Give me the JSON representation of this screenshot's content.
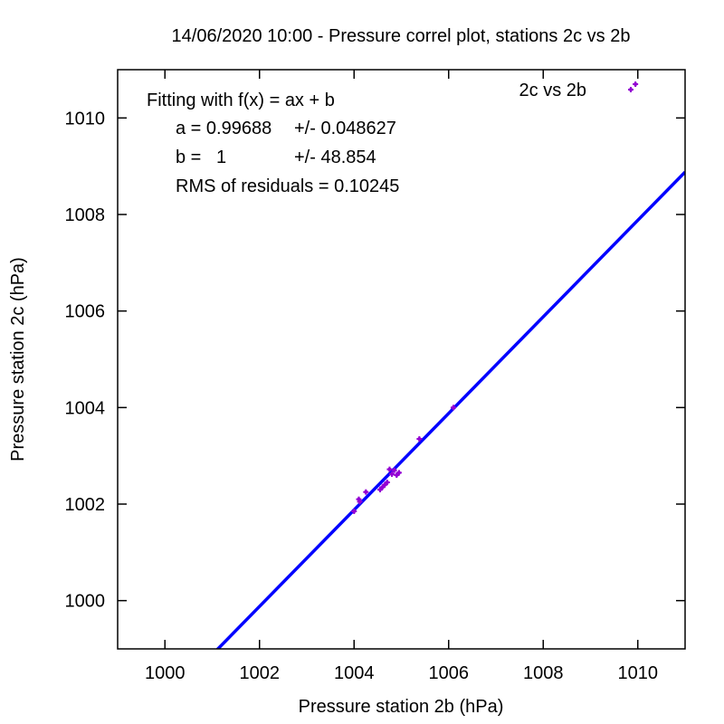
{
  "chart_data": {
    "type": "scatter",
    "title": "14/06/2020 10:00 - Pressure correl plot, stations 2c vs 2b",
    "xlabel": "Pressure station 2b (hPa)",
    "ylabel": "Pressure station 2c (hPa)",
    "xlim": [
      999,
      1011
    ],
    "ylim": [
      999,
      1011
    ],
    "xticks": [
      1000,
      1002,
      1004,
      1006,
      1008,
      1010
    ],
    "yticks": [
      1000,
      1002,
      1004,
      1006,
      1008,
      1010
    ],
    "xtick_labels": [
      "1000",
      "1002",
      "1004",
      "1006",
      "1008",
      "1010"
    ],
    "ytick_labels": [
      "1000",
      "1002",
      "1004",
      "1006",
      "1008",
      "1010"
    ],
    "grid": false,
    "legend": {
      "position": "top-right",
      "label": "2c vs 2b"
    },
    "series": [
      {
        "name": "2c vs 2b",
        "color": "#9400d3",
        "points": [
          [
            1004.0,
            1001.85
          ],
          [
            1004.1,
            1002.1
          ],
          [
            1004.12,
            1002.05
          ],
          [
            1004.25,
            1002.25
          ],
          [
            1004.55,
            1002.3
          ],
          [
            1004.6,
            1002.35
          ],
          [
            1004.65,
            1002.4
          ],
          [
            1004.7,
            1002.45
          ],
          [
            1004.75,
            1002.72
          ],
          [
            1004.8,
            1002.62
          ],
          [
            1004.85,
            1002.7
          ],
          [
            1004.9,
            1002.6
          ],
          [
            1004.95,
            1002.65
          ],
          [
            1005.38,
            1003.35
          ],
          [
            1006.1,
            1004.0
          ],
          [
            1009.95,
            1010.7
          ]
        ]
      }
    ],
    "fit_line": {
      "a": 0.99688,
      "b": 1,
      "color": "#0000ff"
    },
    "annotations": {
      "line1": "Fitting with f(x) = ax + b",
      "a_label": "a = 0.99688",
      "a_err": "+/- 0.048627",
      "b_label": "b =   1",
      "b_err": "+/- 48.854",
      "rms": "RMS of residuals = 0.10245"
    }
  }
}
